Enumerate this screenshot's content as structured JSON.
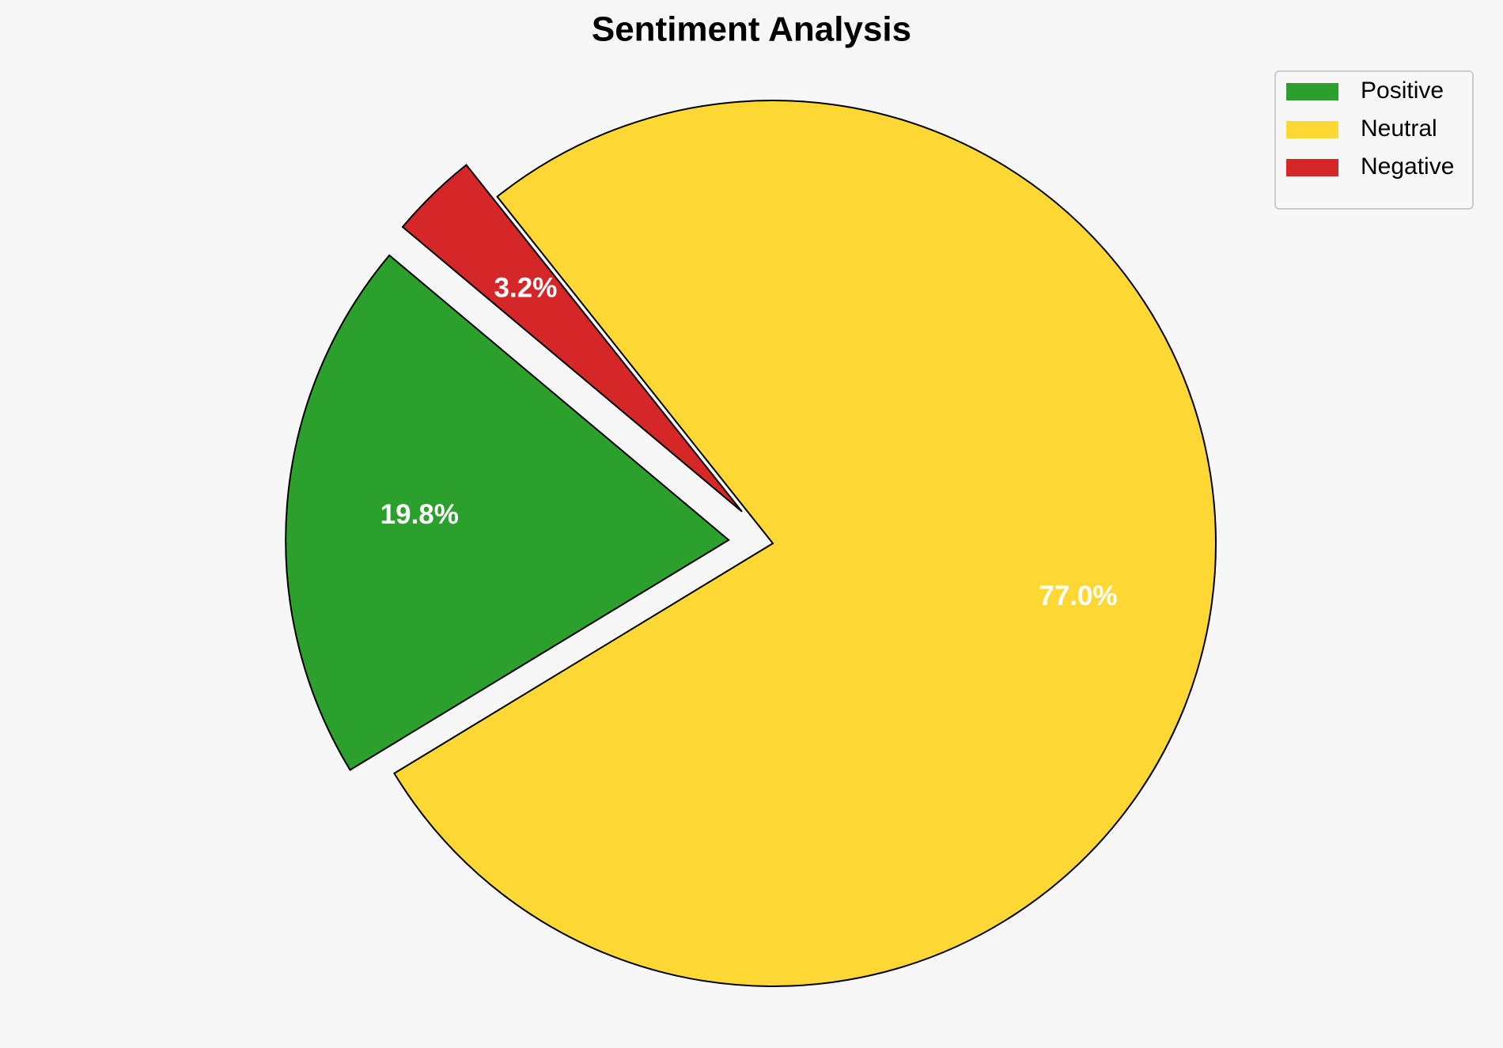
{
  "chart_data": {
    "type": "pie",
    "title": "Sentiment Analysis",
    "categories": [
      "Positive",
      "Neutral",
      "Negative"
    ],
    "values": [
      19.8,
      77.0,
      3.2
    ],
    "value_labels": [
      "19.8%",
      "77.0%",
      "3.2%"
    ],
    "colors": [
      "#2ca02c",
      "#fdd835",
      "#d62728"
    ],
    "explode": [
      0.1,
      0,
      0.1
    ],
    "startangle": 140,
    "legend": "upper right"
  }
}
